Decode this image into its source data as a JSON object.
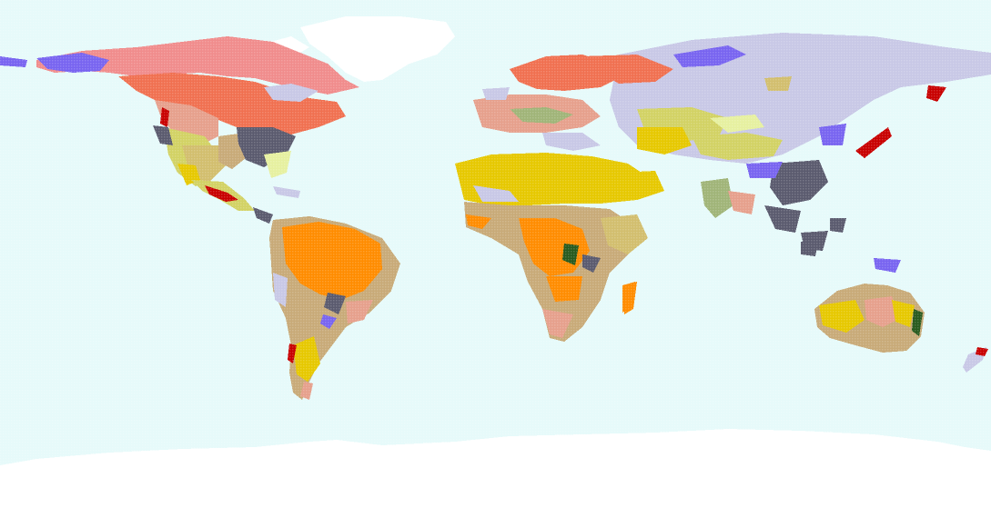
{
  "map": {
    "ocean_color": "#e6fafa",
    "ice_color": "#ffffff",
    "land_palette": {
      "desert": "#e6c800",
      "semi_arid": "#d2be6e",
      "savanna": "#c8aa78",
      "grassland": "#c3d28c",
      "steppe": "#d2d264",
      "tropical_forest": "#ff8c00",
      "dry_forest": "#f0a050",
      "boreal": "#f07050",
      "tundra": "#f08c8c",
      "cold_steppe": "#c8c8e6",
      "wetland": "#7864f0",
      "agriculture": "#5a5a6e",
      "rainforest_dense": "#285a1e",
      "mountain": "#c80000",
      "temperate": "#e6a08c",
      "light_grass": "#e6f0a0",
      "mixed_forest": "#a0b478"
    }
  }
}
